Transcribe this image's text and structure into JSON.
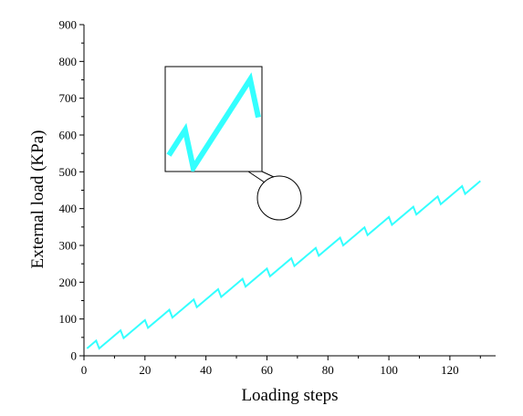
{
  "chart_data": {
    "type": "line",
    "title": "",
    "xlabel": "Loading steps",
    "ylabel": "External load (KPa)",
    "xlim": [
      0,
      135
    ],
    "ylim": [
      0,
      900
    ],
    "x_ticks": [
      0,
      20,
      40,
      60,
      80,
      100,
      120
    ],
    "y_ticks": [
      0,
      100,
      200,
      300,
      400,
      500,
      600,
      700,
      800,
      900
    ],
    "grid": false,
    "legend": "none",
    "line_color": "#33FFFF",
    "pattern": "sawtooth: load rises for 3 steps, drops back for 1 step",
    "series": [
      {
        "x": [
          1,
          2,
          3,
          4,
          5,
          6,
          7,
          8,
          9,
          10,
          11,
          12,
          13,
          14,
          15,
          16,
          17,
          18,
          19,
          20,
          21,
          22,
          23,
          24,
          25,
          26,
          27,
          28,
          29,
          30,
          31,
          32,
          33,
          34,
          35,
          36,
          37,
          38,
          39,
          40,
          41,
          42,
          43,
          44,
          45,
          46,
          47,
          48,
          49,
          50,
          51,
          52,
          53,
          54,
          55,
          56,
          57,
          58,
          59,
          60,
          61,
          62,
          63,
          64,
          65,
          66,
          67,
          68,
          69,
          70,
          71,
          72,
          73,
          74,
          75,
          76,
          77,
          78,
          79,
          80,
          81,
          82,
          83,
          84,
          85,
          86,
          87,
          88,
          89,
          90,
          91,
          92,
          93,
          94,
          95,
          96,
          97,
          98,
          99,
          100,
          101,
          102,
          103,
          104,
          105,
          106,
          107,
          108,
          109,
          110,
          111,
          112,
          113,
          114,
          115,
          116,
          117,
          118,
          119,
          120,
          121,
          122,
          123,
          124,
          125,
          126,
          127,
          128,
          129,
          130
        ],
        "values": [
          20,
          27,
          34,
          41,
          20,
          27,
          34,
          41,
          48,
          55,
          62,
          69,
          48,
          55,
          62,
          69,
          76,
          83,
          90,
          97,
          76,
          83,
          90,
          97,
          104,
          111,
          118,
          125,
          104,
          111,
          118,
          125,
          132,
          139,
          146,
          153,
          132,
          139,
          146,
          153,
          160,
          167,
          174,
          181,
          160,
          167,
          174,
          181,
          188,
          195,
          202,
          209,
          188,
          195,
          202,
          209,
          216,
          223,
          230,
          237,
          216,
          223,
          230,
          237,
          244,
          251,
          258,
          265,
          244,
          251,
          258,
          265,
          272,
          279,
          286,
          293,
          272,
          279,
          286,
          293,
          300,
          307,
          314,
          321,
          300,
          307,
          314,
          321,
          328,
          335,
          342,
          349,
          328,
          335,
          342,
          349,
          356,
          363,
          370,
          377,
          356,
          363,
          370,
          377,
          384,
          391,
          398,
          405,
          384,
          391,
          398,
          405,
          412,
          419,
          426,
          433,
          412,
          419,
          426,
          433,
          440,
          447,
          454,
          461,
          440,
          447,
          454,
          461,
          468,
          475
        ]
      }
    ]
  }
}
